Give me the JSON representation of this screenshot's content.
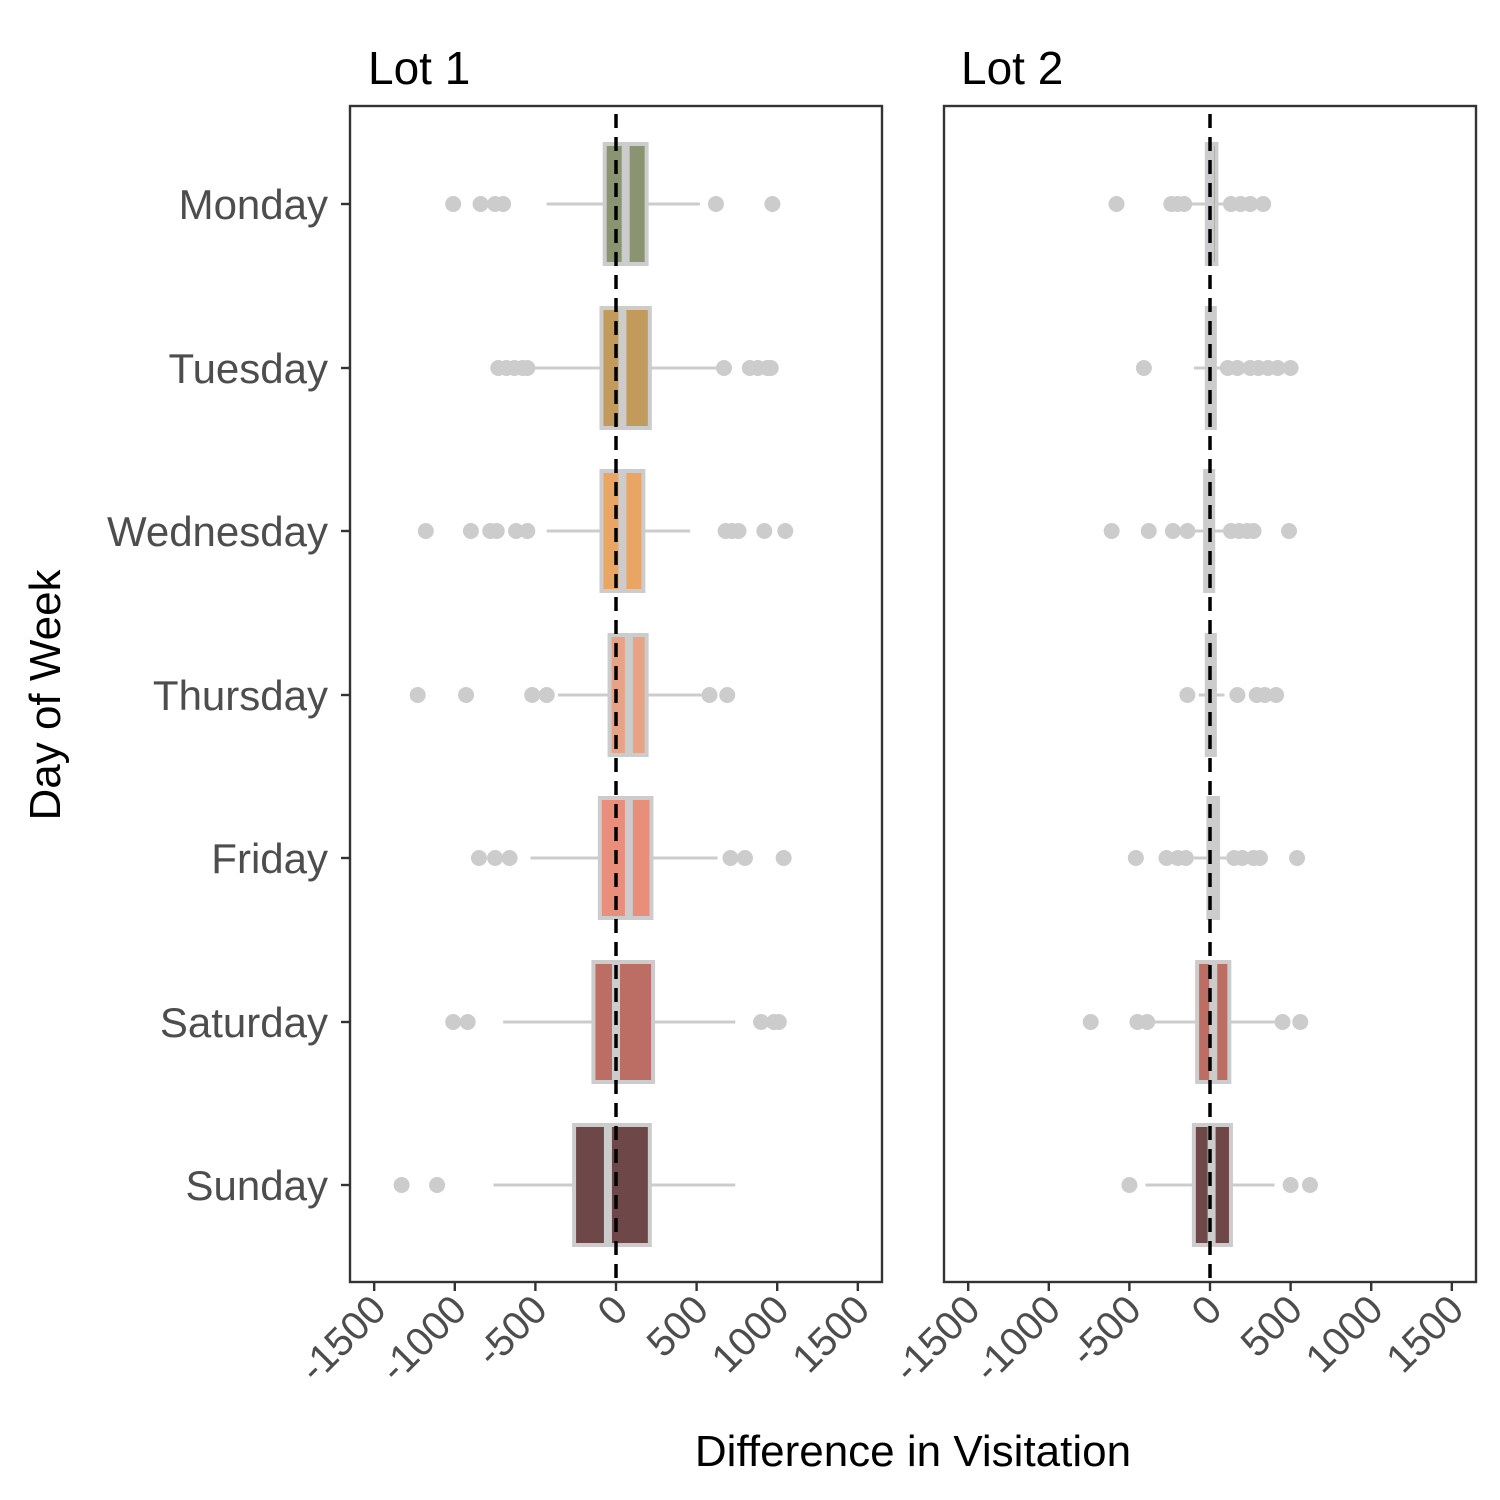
{
  "chart_data": {
    "type": "boxplot",
    "orientation": "horizontal",
    "xlabel": "Difference in Visitation",
    "ylabel": "Day of Week",
    "xlim": [
      -1650,
      1650
    ],
    "x_ticks": [
      -1500,
      -1000,
      -500,
      0,
      500,
      1000,
      1500
    ],
    "x_tick_labels": [
      "-1500",
      "-1000",
      "-500",
      "0",
      "500",
      "1000",
      "1500"
    ],
    "reference_line": 0,
    "categories": [
      "Monday",
      "Tuesday",
      "Wednesday",
      "Thursday",
      "Friday",
      "Saturday",
      "Sunday"
    ],
    "colors": {
      "Monday": "#8a9471",
      "Tuesday": "#c29b5c",
      "Wednesday": "#e9a563",
      "Thursday": "#e8a286",
      "Friday": "#e88e7b",
      "Saturday": "#bc6e65",
      "Sunday": "#6e4848",
      "whisker": "#cccccc",
      "reference_line": "#000000"
    },
    "panels": [
      {
        "title": "Lot 1",
        "series": [
          {
            "name": "Monday",
            "q1": -70,
            "median": 60,
            "q3": 190,
            "whisker_low": -430,
            "whisker_high": 520,
            "outliers": [
              -1010,
              -840,
              -750,
              -700,
              620,
              970
            ]
          },
          {
            "name": "Tuesday",
            "q1": -90,
            "median": 40,
            "q3": 210,
            "whisker_low": -680,
            "whisker_high": 650,
            "outliers": [
              -730,
              -680,
              -630,
              -580,
              -550,
              670,
              830,
              880,
              940,
              960
            ]
          },
          {
            "name": "Wednesday",
            "q1": -90,
            "median": 40,
            "q3": 170,
            "whisker_low": -430,
            "whisker_high": 460,
            "outliers": [
              -1180,
              -900,
              -780,
              -740,
              -620,
              -550,
              680,
              720,
              760,
              920,
              1050
            ]
          },
          {
            "name": "Thursday",
            "q1": -40,
            "median": 80,
            "q3": 190,
            "whisker_low": -360,
            "whisker_high": 530,
            "outliers": [
              -1230,
              -930,
              -520,
              -430,
              580,
              690
            ]
          },
          {
            "name": "Friday",
            "q1": -100,
            "median": 80,
            "q3": 220,
            "whisker_low": -530,
            "whisker_high": 630,
            "outliers": [
              -850,
              -750,
              -660,
              710,
              800,
              1040
            ]
          },
          {
            "name": "Saturday",
            "q1": -140,
            "median": 0,
            "q3": 230,
            "whisker_low": -700,
            "whisker_high": 740,
            "outliers": [
              -1010,
              -920,
              900,
              980,
              1010
            ]
          },
          {
            "name": "Sunday",
            "q1": -260,
            "median": -50,
            "q3": 210,
            "whisker_low": -760,
            "whisker_high": 740,
            "outliers": [
              -1330,
              -1110
            ]
          }
        ]
      },
      {
        "title": "Lot 2",
        "series": [
          {
            "name": "Monday",
            "q1": -20,
            "median": 0,
            "q3": 40,
            "whisker_low": -130,
            "whisker_high": 150,
            "outliers": [
              -580,
              -240,
              -200,
              -160,
              130,
              190,
              250,
              330
            ]
          },
          {
            "name": "Tuesday",
            "q1": -20,
            "median": 0,
            "q3": 30,
            "whisker_low": -100,
            "whisker_high": 100,
            "outliers": [
              -410,
              110,
              170,
              250,
              300,
              360,
              420,
              500
            ]
          },
          {
            "name": "Wednesday",
            "q1": -30,
            "median": -10,
            "q3": 20,
            "whisker_low": -120,
            "whisker_high": 120,
            "outliers": [
              -610,
              -380,
              -230,
              -140,
              130,
              180,
              230,
              270,
              490
            ]
          },
          {
            "name": "Thursday",
            "q1": -20,
            "median": 0,
            "q3": 30,
            "whisker_low": -70,
            "whisker_high": 90,
            "outliers": [
              -140,
              170,
              290,
              340,
              410
            ]
          },
          {
            "name": "Friday",
            "q1": -10,
            "median": 20,
            "q3": 50,
            "whisker_low": -100,
            "whisker_high": 100,
            "outliers": [
              -460,
              -270,
              -200,
              -150,
              150,
              200,
              270,
              310,
              540
            ]
          },
          {
            "name": "Saturday",
            "q1": -80,
            "median": 20,
            "q3": 120,
            "whisker_low": -370,
            "whisker_high": 400,
            "outliers": [
              -740,
              -450,
              -390,
              450,
              560
            ]
          },
          {
            "name": "Sunday",
            "q1": -100,
            "median": 10,
            "q3": 130,
            "whisker_low": -400,
            "whisker_high": 400,
            "outliers": [
              -500,
              500,
              620
            ]
          }
        ]
      }
    ]
  }
}
